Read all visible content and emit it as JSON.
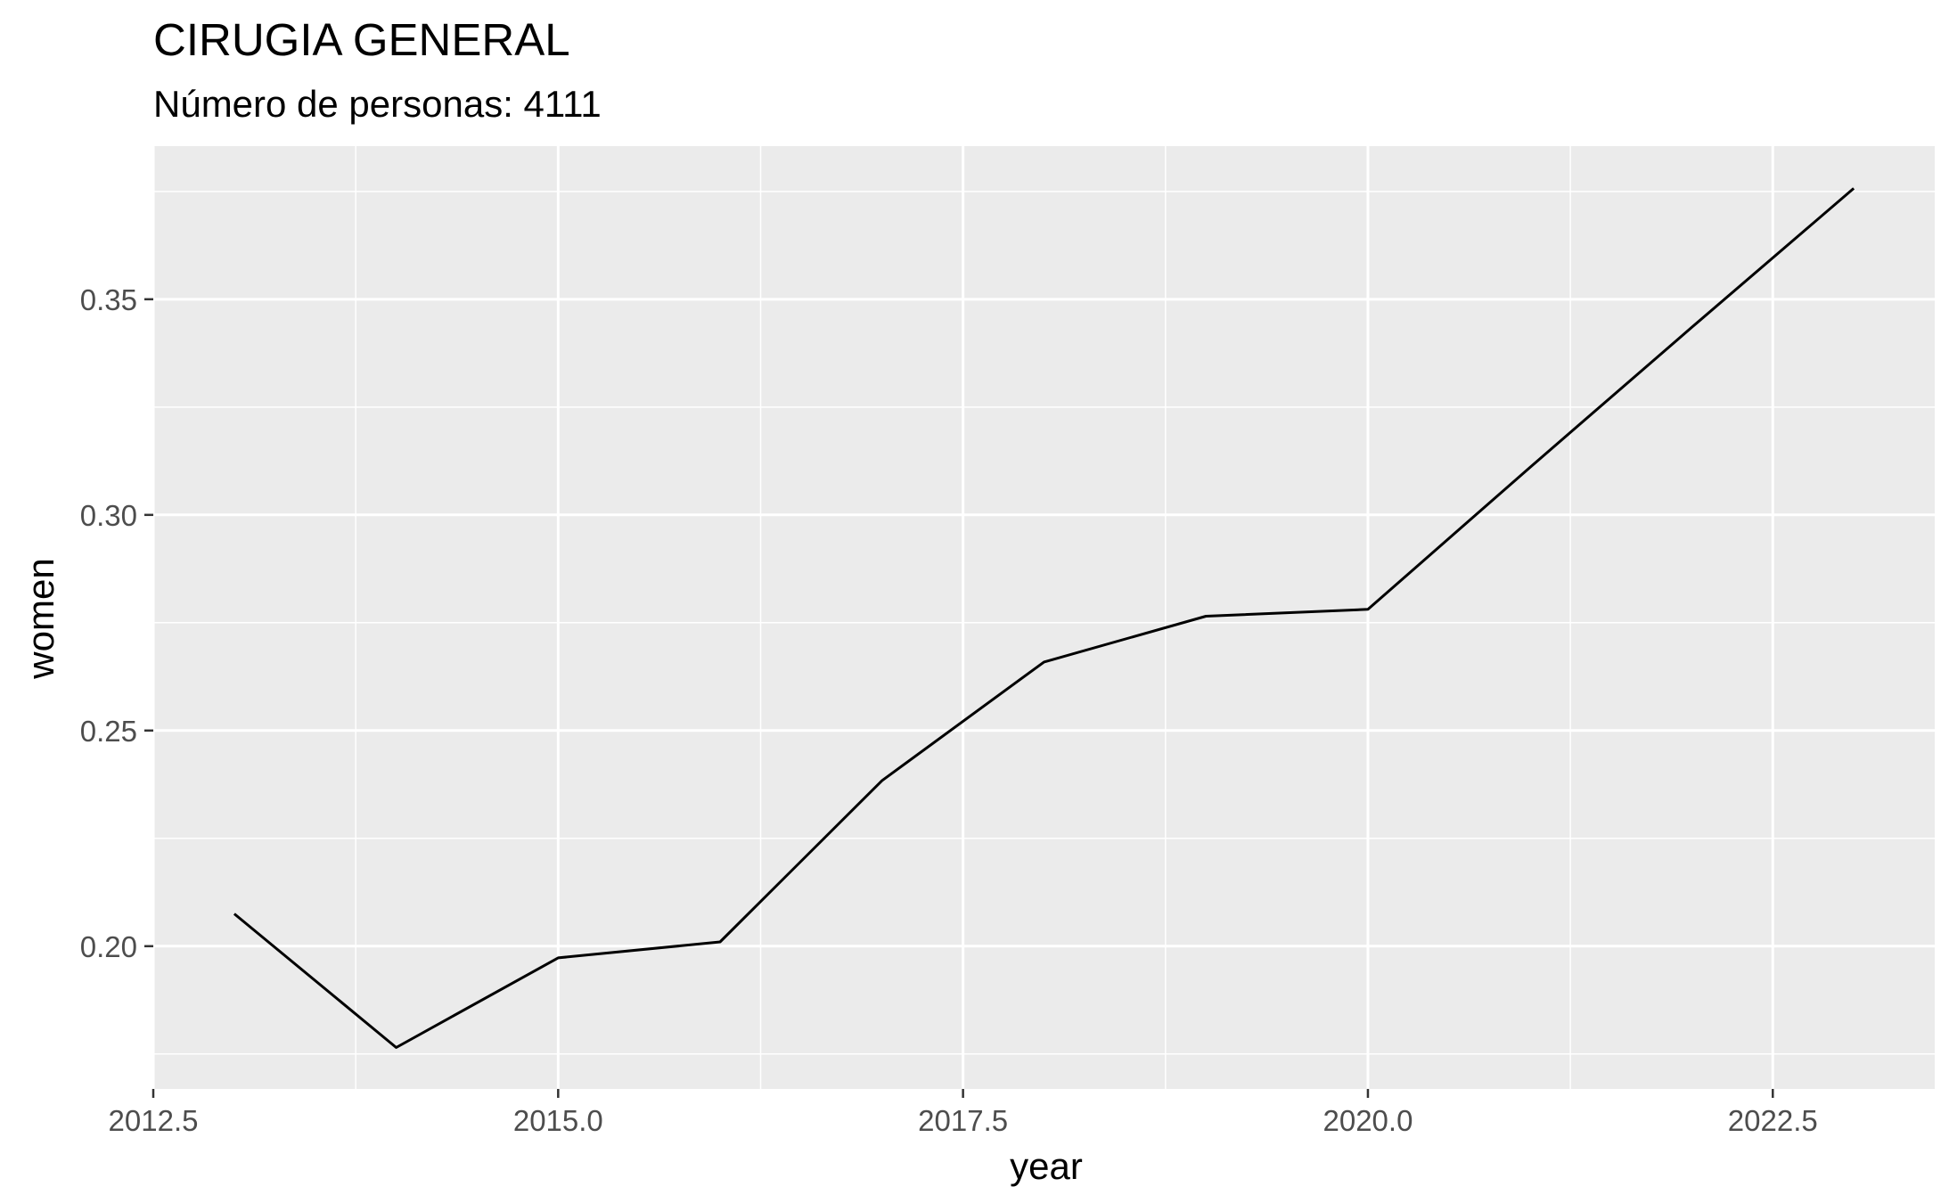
{
  "chart_data": {
    "type": "line",
    "title": "CIRUGIA GENERAL",
    "subtitle": "Número de personas: 4111",
    "xlabel": "year",
    "ylabel": "women",
    "x": [
      2013,
      2014,
      2015,
      2016,
      2017,
      2018,
      2019,
      2020,
      2021,
      2022,
      2023
    ],
    "series": [
      {
        "values": [
          0.2075,
          0.1765,
          0.1973,
          0.201,
          0.2384,
          0.2659,
          0.2765,
          0.2781,
          0.311,
          0.3435,
          0.3757
        ]
      }
    ],
    "xlim": [
      2012.5,
      2023.5
    ],
    "ylim": [
      0.1669,
      0.3855
    ],
    "x_ticks": [
      2012.5,
      2015.0,
      2017.5,
      2020.0,
      2022.5
    ],
    "x_tick_labels": [
      "2012.5",
      "2015.0",
      "2017.5",
      "2020.0",
      "2022.5"
    ],
    "y_ticks": [
      0.2,
      0.25,
      0.3,
      0.35
    ],
    "y_tick_labels": [
      "0.20",
      "0.25",
      "0.30",
      "0.35"
    ],
    "grid": true,
    "legend": "none",
    "colors": {
      "panel": "#ebebeb",
      "grid": "#ffffff",
      "line": "#000000",
      "tick": "#333333"
    }
  }
}
